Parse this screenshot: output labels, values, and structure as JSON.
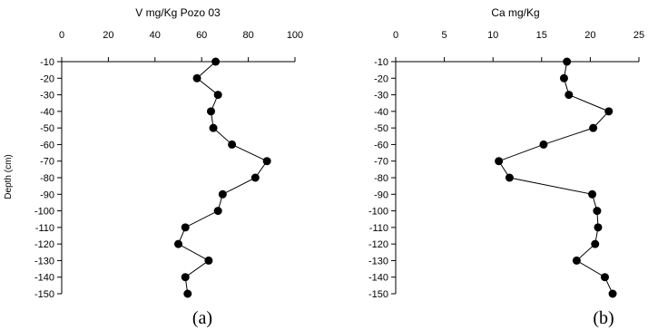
{
  "chart_data": [
    {
      "type": "scatter",
      "panel_label": "(a)",
      "title": "V mg/Kg Pozo 03",
      "ylabel": "Depth (cm)",
      "xlim": [
        0,
        100
      ],
      "x_ticks": [
        "0",
        "20",
        "40",
        "60",
        "80",
        "100"
      ],
      "ylim": [
        -150,
        -10
      ],
      "y_ticks": [
        "-10",
        "-20",
        "-30",
        "-40",
        "-50",
        "-60",
        "-70",
        "-80",
        "-90",
        "-100",
        "-110",
        "-120",
        "-130",
        "-140",
        "-150"
      ],
      "x_axis_position": "top",
      "grid": false,
      "series": [
        {
          "points": [
            {
              "x": 66,
              "y": -10
            },
            {
              "x": 58,
              "y": -20
            },
            {
              "x": 67,
              "y": -30
            },
            {
              "x": 64,
              "y": -40
            },
            {
              "x": 65,
              "y": -50
            },
            {
              "x": 73,
              "y": -60
            },
            {
              "x": 88,
              "y": -70
            },
            {
              "x": 83,
              "y": -80
            },
            {
              "x": 69,
              "y": -90
            },
            {
              "x": 67,
              "y": -100
            },
            {
              "x": 53,
              "y": -110
            },
            {
              "x": 50,
              "y": -120
            },
            {
              "x": 63,
              "y": -130
            },
            {
              "x": 53,
              "y": -140
            },
            {
              "x": 54,
              "y": -150
            }
          ]
        }
      ]
    },
    {
      "type": "scatter",
      "panel_label": "(b)",
      "title": "Ca mg/Kg",
      "ylabel": "",
      "xlim": [
        0,
        25
      ],
      "x_ticks": [
        "0",
        "5",
        "10",
        "15",
        "20",
        "25"
      ],
      "ylim": [
        -150,
        -10
      ],
      "y_ticks": [
        "-10",
        "-20",
        "-30",
        "-40",
        "-50",
        "-60",
        "-70",
        "-80",
        "-90",
        "-100",
        "-110",
        "-120",
        "-130",
        "-140",
        "-150"
      ],
      "x_axis_position": "top",
      "grid": false,
      "series": [
        {
          "points": [
            {
              "x": 17.6,
              "y": -10
            },
            {
              "x": 17.3,
              "y": -20
            },
            {
              "x": 17.8,
              "y": -30
            },
            {
              "x": 21.9,
              "y": -40
            },
            {
              "x": 20.3,
              "y": -50
            },
            {
              "x": 15.2,
              "y": -60
            },
            {
              "x": 10.6,
              "y": -70
            },
            {
              "x": 11.7,
              "y": -80
            },
            {
              "x": 20.2,
              "y": -90
            },
            {
              "x": 20.7,
              "y": -100
            },
            {
              "x": 20.8,
              "y": -110
            },
            {
              "x": 20.5,
              "y": -120
            },
            {
              "x": 18.6,
              "y": -130
            },
            {
              "x": 21.5,
              "y": -140
            },
            {
              "x": 22.3,
              "y": -150
            }
          ]
        }
      ]
    }
  ]
}
